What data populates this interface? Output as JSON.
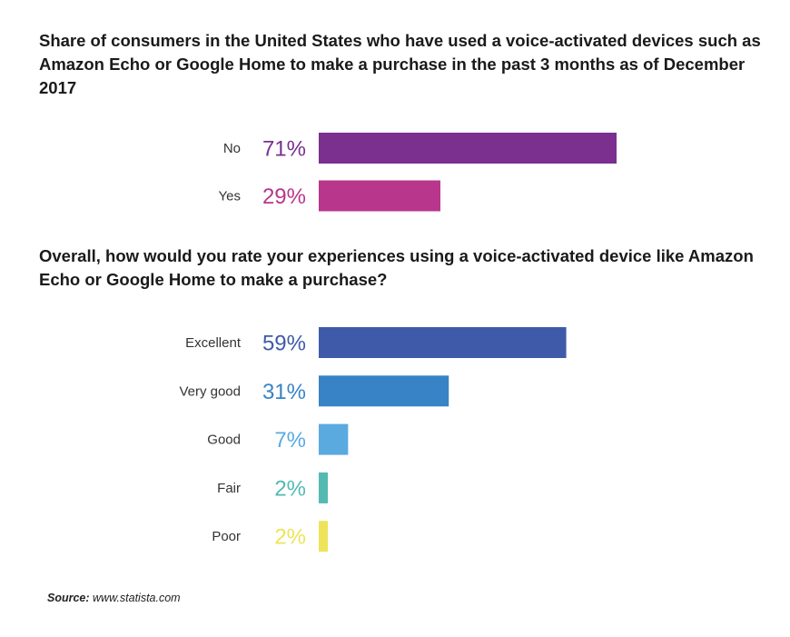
{
  "chart_data": [
    {
      "type": "bar",
      "orientation": "horizontal",
      "title": "Share of consumers in the United States who have used a voice-activated devices such as Amazon Echo or Google Home to make a purchase in the past 3 months as of December 2017",
      "categories": [
        "No",
        "Yes"
      ],
      "values": [
        71,
        29
      ],
      "labels": [
        "71%",
        "29%"
      ],
      "colors": [
        "#7b2f8e",
        "#b8368b"
      ],
      "xlim": [
        0,
        100
      ]
    },
    {
      "type": "bar",
      "orientation": "horizontal",
      "title": "Overall, how would you rate your experiences using a voice-activated device like Amazon Echo or Google Home to make a purchase?",
      "categories": [
        "Excellent",
        "Very good",
        "Good",
        "Fair",
        "Poor"
      ],
      "values": [
        59,
        31,
        7,
        2,
        2
      ],
      "labels": [
        "59%",
        "31%",
        "7%",
        "2%",
        "2%"
      ],
      "colors": [
        "#3f5aa8",
        "#3783c6",
        "#5aaae0",
        "#52bab2",
        "#ede45a"
      ],
      "xlim": [
        0,
        100
      ]
    }
  ],
  "source": {
    "label": "Source:",
    "text": "www.statista.com"
  }
}
